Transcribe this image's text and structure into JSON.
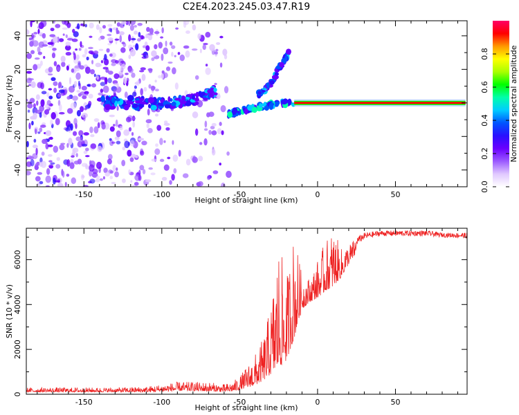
{
  "title": "C2E4.2023.245.03.47.R19",
  "chart_data": [
    {
      "type": "heatmap",
      "xlabel": "Height of straight line (km)",
      "ylabel": "Frequency (Hz)",
      "xlim": [
        -187,
        96
      ],
      "ylim": [
        -50,
        49
      ],
      "xticks": [
        -150,
        -100,
        -50,
        0,
        50
      ],
      "yticks": [
        -40,
        -20,
        0,
        20,
        40
      ],
      "xtick_labels": [
        "-150",
        "-100",
        "-50",
        "0",
        "50"
      ],
      "ytick_labels": [
        "-40",
        "-20",
        "0",
        "20",
        "40"
      ],
      "colorbar": {
        "label": "Normalized spectral amplitude",
        "range": [
          0.0,
          1.0
        ],
        "ticks": [
          0.0,
          0.2,
          0.4,
          0.6,
          0.8
        ],
        "tick_labels": [
          "0.0",
          "0.2",
          "0.4",
          "0.6",
          "0.8"
        ],
        "colormap": [
          "#ffffff",
          "#e0c8ff",
          "#9b59ff",
          "#6a00ff",
          "#2a10ff",
          "#0055ff",
          "#00ccff",
          "#00ffaa",
          "#00ff00",
          "#aaff00",
          "#ffff00",
          "#ff9900",
          "#ff0000",
          "#ff0066"
        ]
      },
      "features": [
        {
          "name": "steady carrier line",
          "x_range": [
            -15,
            95
          ],
          "frequency_hz": 0,
          "amplitude": 0.95
        },
        {
          "name": "lower branch",
          "points": [
            [
              -58,
              -7
            ],
            [
              -50,
              -5
            ],
            [
              -40,
              -3
            ],
            [
              -30,
              -1
            ],
            [
              -20,
              0
            ],
            [
              -15,
              0
            ]
          ]
        },
        {
          "name": "upper branch",
          "points": [
            [
              -38,
              5
            ],
            [
              -30,
              12
            ],
            [
              -25,
              20
            ],
            [
              -18,
              30
            ]
          ]
        },
        {
          "name": "noisy trace",
          "points": [
            [
              -140,
              0
            ],
            [
              -110,
              0
            ],
            [
              -95,
              0
            ],
            [
              -85,
              1
            ],
            [
              -75,
              3
            ],
            [
              -65,
              8
            ]
          ]
        }
      ]
    },
    {
      "type": "line",
      "xlabel": "Height of straight line (km)",
      "ylabel": "SNR (10 * v/v)",
      "xlim": [
        -187,
        96
      ],
      "ylim": [
        0,
        7400
      ],
      "xticks": [
        -150,
        -100,
        -50,
        0,
        50
      ],
      "yticks": [
        0,
        2000,
        4000,
        6000
      ],
      "xtick_labels": [
        "-150",
        "-100",
        "-50",
        "0",
        "50"
      ],
      "ytick_labels": [
        "0",
        "2000",
        "4000",
        "6000"
      ],
      "series": [
        {
          "name": "SNR",
          "color": "#ee2020",
          "x": [
            -187,
            -170,
            -150,
            -130,
            -110,
            -100,
            -90,
            -80,
            -70,
            -60,
            -55,
            -50,
            -45,
            -40,
            -35,
            -30,
            -25,
            -20,
            -15,
            -10,
            -5,
            0,
            5,
            10,
            15,
            20,
            25,
            30,
            40,
            50,
            60,
            70,
            80,
            96
          ],
          "envelope": [
            300,
            300,
            300,
            300,
            350,
            450,
            550,
            550,
            550,
            450,
            550,
            800,
            1300,
            1800,
            2500,
            4000,
            6800,
            5200,
            7300,
            5300,
            5200,
            6000,
            6800,
            7400,
            6500,
            6700,
            7000,
            7200,
            7300,
            7300,
            7300,
            7300,
            7200,
            7200
          ],
          "baseline": [
            100,
            100,
            100,
            100,
            100,
            120,
            150,
            150,
            130,
            110,
            130,
            200,
            300,
            400,
            600,
            900,
            1200,
            1500,
            2500,
            3800,
            4100,
            4300,
            4600,
            4800,
            5200,
            5800,
            6300,
            6600,
            6800,
            6800,
            6800,
            6800,
            6800,
            6700
          ]
        }
      ]
    }
  ]
}
